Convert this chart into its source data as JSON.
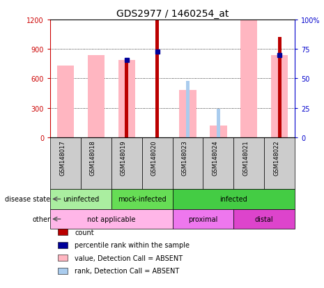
{
  "title": "GDS2977 / 1460254_at",
  "samples": [
    "GSM148017",
    "GSM148018",
    "GSM148019",
    "GSM148020",
    "GSM148023",
    "GSM148024",
    "GSM148021",
    "GSM148022"
  ],
  "count": [
    null,
    null,
    790,
    1190,
    null,
    null,
    null,
    1020
  ],
  "value_absent": [
    730,
    840,
    790,
    null,
    480,
    120,
    1190,
    840
  ],
  "rank_absent_pct": [
    null,
    null,
    null,
    null,
    48,
    24,
    null,
    null
  ],
  "percentile_rank": [
    null,
    null,
    790,
    875,
    null,
    null,
    null,
    840
  ],
  "left_yticks": [
    0,
    300,
    600,
    900,
    1200
  ],
  "right_yticks": [
    0,
    25,
    50,
    75,
    100
  ],
  "ylim_left": [
    0,
    1200
  ],
  "ylim_right": [
    0,
    100
  ],
  "disease_groups": [
    {
      "label": "uninfected",
      "start": 0,
      "end": 2,
      "color": "#aaeea0"
    },
    {
      "label": "mock-infected",
      "start": 2,
      "end": 4,
      "color": "#66dd55"
    },
    {
      "label": "infected",
      "start": 4,
      "end": 8,
      "color": "#44cc44"
    }
  ],
  "other_groups": [
    {
      "label": "not applicable",
      "start": 0,
      "end": 4,
      "color": "#ffb6e8"
    },
    {
      "label": "proximal",
      "start": 4,
      "end": 6,
      "color": "#ee77ee"
    },
    {
      "label": "distal",
      "start": 6,
      "end": 8,
      "color": "#dd44cc"
    }
  ],
  "count_color": "#bb0000",
  "percentile_color": "#000099",
  "value_absent_color": "#ffb6c1",
  "rank_absent_color": "#aaccee",
  "title_fontsize": 10,
  "tick_fontsize": 7,
  "left_axis_color": "#cc0000",
  "right_axis_color": "#0000cc",
  "wide_bar_width": 0.55,
  "narrow_bar_width": 0.12
}
